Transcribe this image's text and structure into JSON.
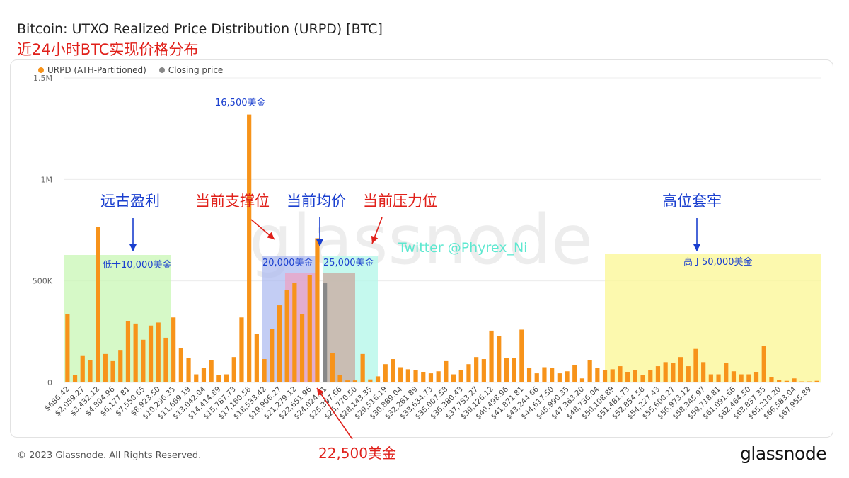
{
  "header": {
    "title": "Bitcoin: UTXO Realized Price Distribution (URPD) [BTC]",
    "subtitle": "近24小时BTC实现价格分布"
  },
  "legend": {
    "series1": "URPD (ATH-Partitioned)",
    "series2": "Closing price",
    "series1_color": "#f7931a",
    "series2_color": "#888888"
  },
  "footer": {
    "copyright": "© 2023 Glassnode. All Rights Reserved.",
    "brand": "glassnode"
  },
  "watermark": "glassnode",
  "chart_data": {
    "type": "bar",
    "y_ticks": [
      "0",
      "500K",
      "1M",
      "1.5M"
    ],
    "ylim": [
      0,
      1500000
    ],
    "grid": true,
    "legend_position": "top-left",
    "x_tick_labels": [
      "$686.42",
      "$2,059.27",
      "$3,432.12",
      "$4,804.96",
      "$6,177.81",
      "$7,550.65",
      "$8,923.50",
      "$10,296.35",
      "$11,669.19",
      "$13,042.04",
      "$14,414.89",
      "$15,787.73",
      "$17,160.58",
      "$18,533.42",
      "$19,906.27",
      "$21,279.12",
      "$22,651.96",
      "$24,024.81",
      "$25,397.66",
      "$26,770.50",
      "$28,143.35",
      "$29,516.19",
      "$30,889.04",
      "$32,261.89",
      "$33,634.73",
      "$35,007.58",
      "$36,380.43",
      "$37,753.27",
      "$39,126.12",
      "$40,498.96",
      "$41,871.81",
      "$43,244.66",
      "$44,617.50",
      "$45,990.35",
      "$47,363.20",
      "$48,736.04",
      "$50,108.89",
      "$51,481.73",
      "$52,854.58",
      "$54,227.43",
      "$55,600.27",
      "$56,973.12",
      "$58,345.97",
      "$59,718.81",
      "$61,091.66",
      "$62,464.50",
      "$63,837.35",
      "$65,210.20",
      "$66,583.04",
      "$67,955.89"
    ],
    "values": [
      335000,
      35000,
      130000,
      110000,
      765000,
      140000,
      105000,
      160000,
      300000,
      290000,
      210000,
      280000,
      295000,
      220000,
      320000,
      170000,
      120000,
      40000,
      70000,
      110000,
      35000,
      40000,
      125000,
      320000,
      1320000,
      240000,
      115000,
      265000,
      380000,
      455000,
      490000,
      335000,
      530000,
      710000,
      490000,
      145000,
      35000,
      10000,
      10000,
      140000,
      15000,
      30000,
      90000,
      115000,
      75000,
      65000,
      60000,
      50000,
      45000,
      55000,
      105000,
      40000,
      60000,
      90000,
      125000,
      115000,
      255000,
      230000,
      120000,
      120000,
      260000,
      70000,
      45000,
      75000,
      70000,
      45000,
      55000,
      85000,
      20000,
      110000,
      70000,
      60000,
      65000,
      80000,
      50000,
      60000,
      35000,
      60000,
      80000,
      100000,
      95000,
      125000,
      80000,
      165000,
      100000,
      40000,
      40000,
      95000,
      55000,
      40000,
      40000,
      50000,
      180000,
      25000,
      12000,
      8000,
      20000,
      5000,
      5000,
      8000
    ],
    "closing_price_bar_index": 34,
    "annotations": {
      "ancient_profit": "远古盈利",
      "below_10k": "低于10,000美金",
      "current_support": "当前支撑位",
      "current_avg": "当前均价",
      "current_resistance": "当前压力位",
      "high_trapped": "高位套牢",
      "label_16500": "16,500美金",
      "label_20000": "20,000美金",
      "label_25000": "25,000美金",
      "label_22500": "22,500美金",
      "above_50k": "高于50,000美金",
      "twitter": "Twitter @Phyrex_Ni"
    }
  }
}
